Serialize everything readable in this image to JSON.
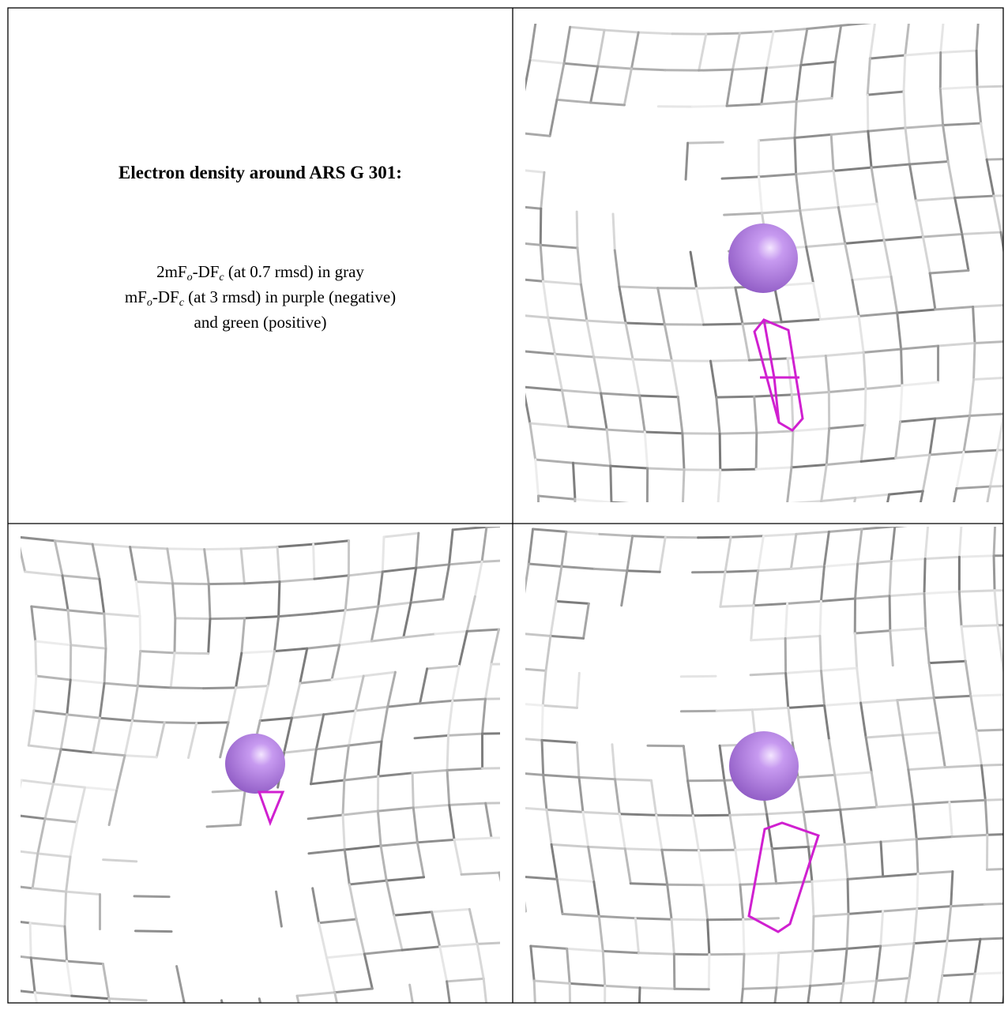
{
  "caption": {
    "title": "Electron density around ARS G 301:",
    "lines": [
      [
        "2mF",
        "o",
        "-DF",
        "c",
        " (at 0.7 rmsd) in gray"
      ],
      [
        "mF",
        "o",
        "-DF",
        "c",
        " (at 3 rmsd) in purple (negative)"
      ],
      [
        "and green (positive)"
      ]
    ]
  }
}
